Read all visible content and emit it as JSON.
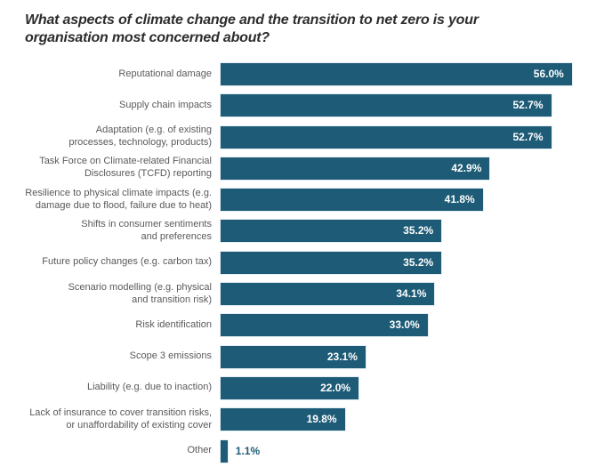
{
  "chart": {
    "title": "What aspects of climate change and the transition to net zero is your organisation most concerned about?"
  },
  "chart_data": {
    "type": "bar",
    "orientation": "horizontal",
    "title": "What aspects of climate change and the transition to net zero is your organisation most concerned about?",
    "xlabel": "",
    "ylabel": "",
    "xlim": [
      0,
      60
    ],
    "grid": false,
    "legend": false,
    "value_format": "percent_one_decimal",
    "categories": [
      "Reputational damage",
      "Supply chain impacts",
      "Adaptation (e.g. of existing\nprocesses, technology, products)",
      "Task Force on Climate-related Financial\nDisclosures (TCFD) reporting",
      "Resilience to physical climate impacts (e.g.\ndamage due to flood, failure due to heat)",
      "Shifts in consumer sentiments\nand preferences",
      "Future policy changes (e.g. carbon tax)",
      "Scenario modelling (e.g. physical\nand transition risk)",
      "Risk identification",
      "Scope 3 emissions",
      "Liability (e.g. due to inaction)",
      "Lack of insurance to cover transition risks,\nor unaffordability of existing cover",
      "Other"
    ],
    "values": [
      56.0,
      52.7,
      52.7,
      42.9,
      41.8,
      35.2,
      35.2,
      34.1,
      33.0,
      23.1,
      22.0,
      19.8,
      1.1
    ],
    "value_labels": [
      "56.0%",
      "52.7%",
      "52.7%",
      "42.9%",
      "41.8%",
      "35.2%",
      "35.2%",
      "34.1%",
      "33.0%",
      "23.1%",
      "22.0%",
      "19.8%",
      "1.1%"
    ],
    "colors": {
      "bar": "#1d5b76",
      "category_label": "#5a5a5a",
      "value_label_inside": "#ffffff",
      "value_label_outside": "#1d5b76",
      "title": "#2d2d2d",
      "background": "#ffffff"
    }
  }
}
